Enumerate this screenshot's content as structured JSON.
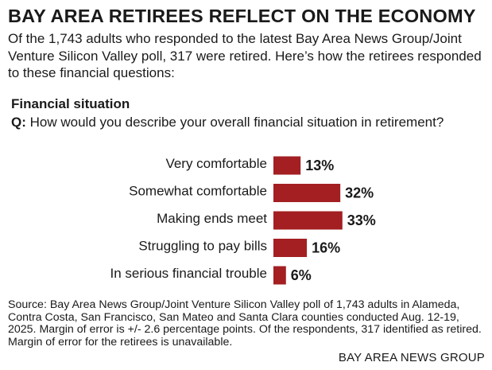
{
  "headline": "BAY AREA RETIREES REFLECT ON THE ECONOMY",
  "intro": "Of the 1,743 adults who responded to the latest Bay Area News Group/Joint Venture Silicon Valley poll, 317 were retired. Here’s how the retirees responded to these financial questions:",
  "section_label": "Financial situation",
  "question": {
    "prefix": "Q:",
    "text": "How would you describe your overall financial situation in retirement?"
  },
  "chart_data": {
    "type": "bar",
    "orientation": "horizontal",
    "categories": [
      "Very comfortable",
      "Somewhat comfortable",
      "Making ends meet",
      "Struggling to pay bills",
      "In serious financial trouble"
    ],
    "values": [
      13,
      32,
      33,
      16,
      6
    ],
    "value_labels": [
      "13%",
      "32%",
      "33%",
      "16%",
      "6%"
    ],
    "unit": "%",
    "bar_color": "#a31f22",
    "grid": false,
    "legend": "none"
  },
  "source": "Source: Bay Area News Group/Joint Venture Silicon Valley poll of 1,743 adults in Alameda, Contra Costa, San Francisco, San Mateo and Santa Clara counties conducted Aug. 12-19, 2025. Margin of error is +/- 2.6 percentage points. Of the respondents, 317 identified as retired. Margin of error for the retirees is unavailable.",
  "credit": "BAY AREA NEWS GROUP"
}
